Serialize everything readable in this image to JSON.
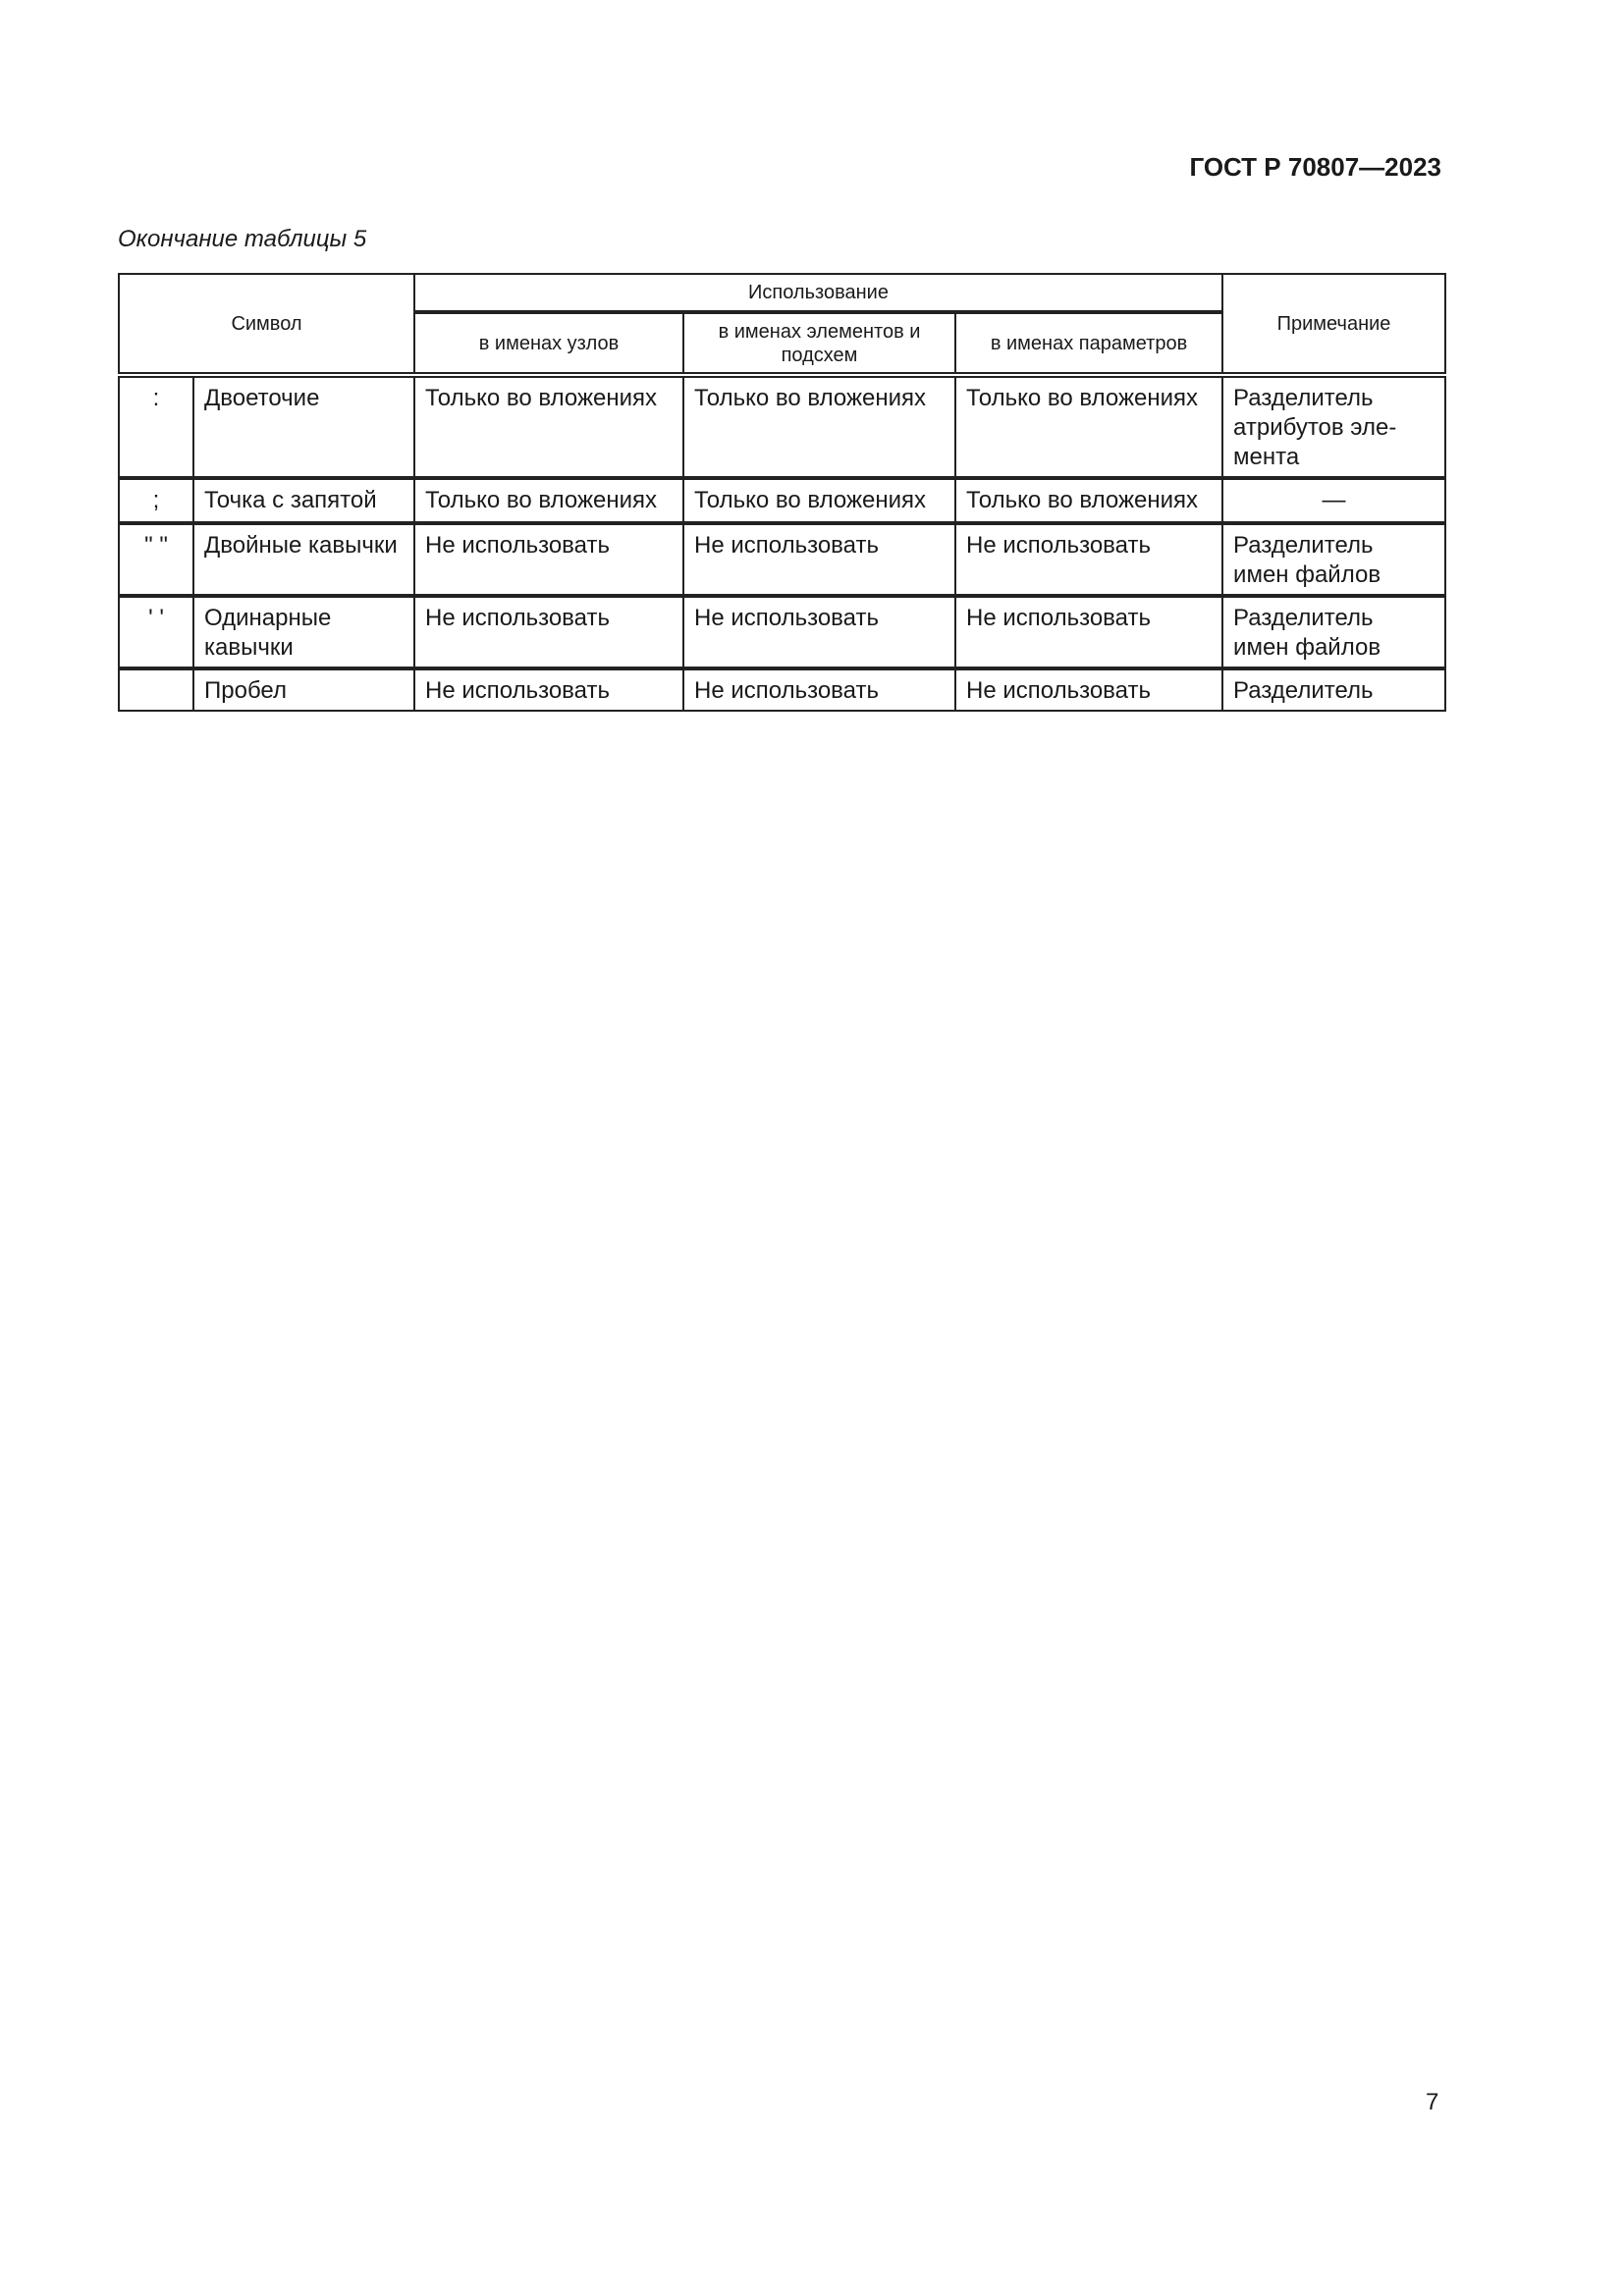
{
  "header": {
    "doc_code": "ГОСТ Р 70807—2023"
  },
  "caption": "Окончание таблицы 5",
  "table": {
    "col_symbol": "Символ",
    "col_usage": "Использование",
    "col_nodes": "в именах узлов",
    "col_elements": "в именах элементов и подсхем",
    "col_params": "в именах параметров",
    "col_note": "Примечание",
    "rows": [
      {
        "symbol": ":",
        "name": "Двоеточие",
        "nodes": "Только во вложениях",
        "elements": "Только во вложениях",
        "params": "Только во вложениях",
        "note": "Разделитель атрибутов эле-мента"
      },
      {
        "symbol": ";",
        "name": "Точка с запятой",
        "nodes": "Только во вложениях",
        "elements": "Только во вложениях",
        "params": "Только во вложениях",
        "note": "—"
      },
      {
        "symbol": "\" \"",
        "name": "Двойные кавычки",
        "nodes": "Не использовать",
        "elements": "Не использовать",
        "params": "Не использовать",
        "note": "Разделитель имен файлов"
      },
      {
        "symbol": "' '",
        "name": "Одинарные кавычки",
        "nodes": "Не использовать",
        "elements": "Не использовать",
        "params": "Не использовать",
        "note": "Разделитель имен файлов"
      },
      {
        "symbol": "",
        "name": "Пробел",
        "nodes": "Не использовать",
        "elements": "Не использовать",
        "params": "Не использовать",
        "note": "Разделитель"
      }
    ]
  },
  "page_number": "7"
}
